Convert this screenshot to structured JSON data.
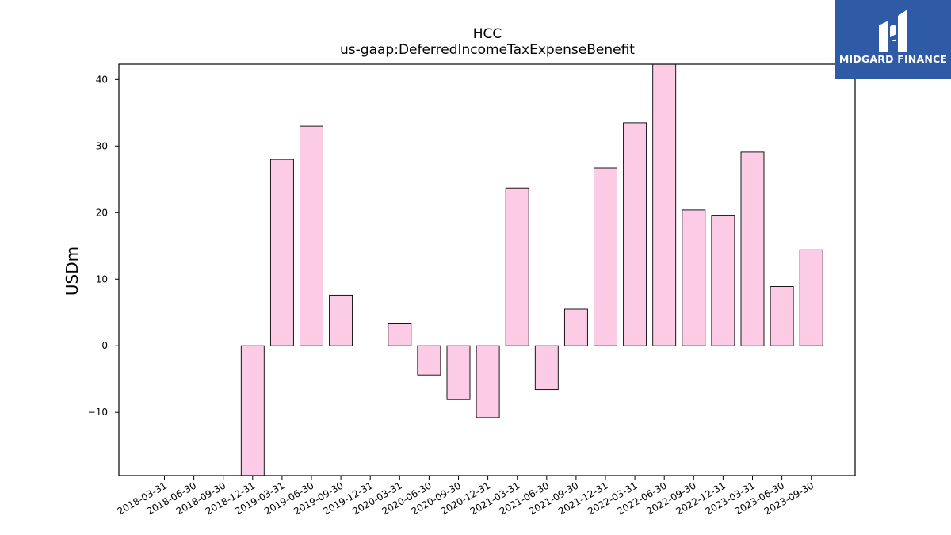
{
  "brand": {
    "name": "MIDGARD FINANCE",
    "background_color": "#2f5aa6"
  },
  "chart_data": {
    "type": "bar",
    "title": "HCC",
    "subtitle": "us-gaap:DeferredIncomeTaxExpenseBenefit",
    "xlabel": "",
    "ylabel": "USDm",
    "categories": [
      "2018-03-31",
      "2018-06-30",
      "2018-09-30",
      "2018-12-31",
      "2019-03-31",
      "2019-06-30",
      "2019-09-30",
      "2019-12-31",
      "2020-03-31",
      "2020-06-30",
      "2020-09-30",
      "2020-12-31",
      "2021-03-31",
      "2021-06-30",
      "2021-09-30",
      "2021-12-31",
      "2022-03-31",
      "2022-06-30",
      "2022-09-30",
      "2022-12-31",
      "2023-03-31",
      "2023-06-30",
      "2023-09-30"
    ],
    "values": [
      0,
      0,
      0,
      -21.0,
      28.0,
      33.0,
      7.6,
      0,
      3.3,
      -4.4,
      -8.1,
      -10.8,
      23.7,
      -6.6,
      5.5,
      26.7,
      33.5,
      44.0,
      20.4,
      19.6,
      29.1,
      8.9,
      14.4
    ],
    "ylim": [
      -19.5,
      42.3
    ],
    "yticks": [
      -10,
      0,
      10,
      20,
      30,
      40
    ],
    "bar_color": "#fccce6",
    "edge_color": "#000000",
    "grid": false,
    "legend": "none"
  }
}
